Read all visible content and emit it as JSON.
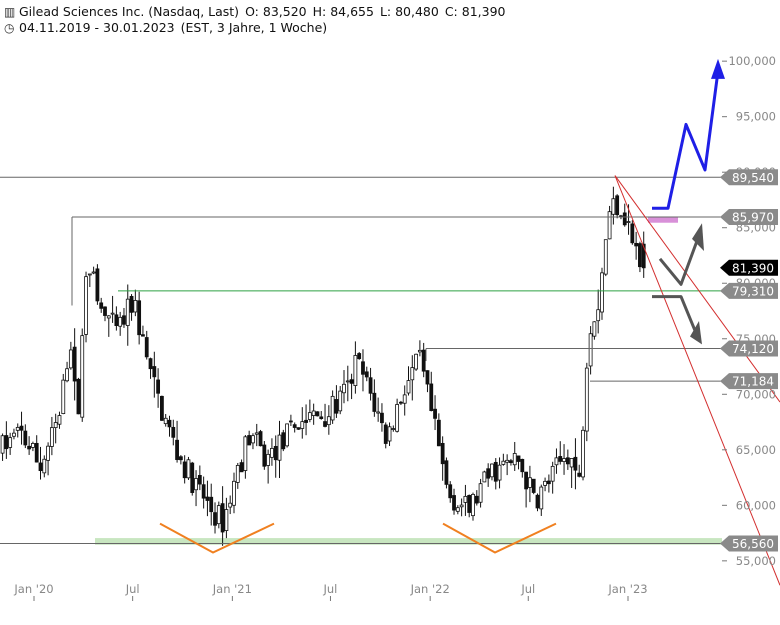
{
  "header": {
    "title": "Gilead Sciences Inc. (Nasdaq, Last)",
    "open": "O: 83,520",
    "high": "H: 84,655",
    "low": "L: 80,480",
    "close": "C: 81,390",
    "period": "04.11.2019 - 30.01.2023",
    "meta": "(EST, 3 Jahre, 1 Woche)"
  },
  "chart_data": {
    "type": "candlestick",
    "ylim": [
      53.5,
      101.5
    ],
    "y_ticks": [
      55,
      60,
      65,
      70,
      75,
      80,
      85,
      90,
      95,
      100
    ],
    "y_tick_labels": [
      "55,000",
      "60,000",
      "65,000",
      "70,000",
      "75,000",
      "80,000",
      "85,000",
      "90,000",
      "95,000",
      "100,000"
    ],
    "x_ticks": [
      {
        "label": "Jan '20",
        "date": "2020-01-01"
      },
      {
        "label": "Jul",
        "date": "2020-07-01"
      },
      {
        "label": "Jan '21",
        "date": "2021-01-01"
      },
      {
        "label": "Jul",
        "date": "2021-07-01"
      },
      {
        "label": "Jan '22",
        "date": "2022-01-01"
      },
      {
        "label": "Jul",
        "date": "2022-07-01"
      },
      {
        "label": "Jan '23",
        "date": "2023-01-01"
      }
    ],
    "x_start": "2019-11-04",
    "x_end": "2023-01-30",
    "anchors": [
      [
        "2019-11-04",
        65.0
      ],
      [
        "2019-12-15",
        66.5
      ],
      [
        "2020-01-20",
        63.5
      ],
      [
        "2020-02-25",
        68.0
      ],
      [
        "2020-03-15",
        75.5
      ],
      [
        "2020-03-28",
        67.0
      ],
      [
        "2020-04-15",
        83.0
      ],
      [
        "2020-05-05",
        78.0
      ],
      [
        "2020-06-10",
        75.5
      ],
      [
        "2020-07-10",
        78.5
      ],
      [
        "2020-07-25",
        75.0
      ],
      [
        "2020-08-20",
        70.0
      ],
      [
        "2020-09-30",
        64.5
      ],
      [
        "2020-11-05",
        61.5
      ],
      [
        "2020-12-01",
        59.5
      ],
      [
        "2020-12-22",
        58.5
      ],
      [
        "2021-01-20",
        63.5
      ],
      [
        "2021-02-10",
        66.5
      ],
      [
        "2021-03-10",
        64.0
      ],
      [
        "2021-04-15",
        66.0
      ],
      [
        "2021-05-10",
        67.5
      ],
      [
        "2021-06-10",
        68.0
      ],
      [
        "2021-07-10",
        68.5
      ],
      [
        "2021-08-10",
        70.5
      ],
      [
        "2021-08-25",
        73.0
      ],
      [
        "2021-09-20",
        70.0
      ],
      [
        "2021-10-20",
        66.0
      ],
      [
        "2021-11-20",
        70.5
      ],
      [
        "2021-12-20",
        73.0
      ],
      [
        "2022-01-20",
        66.0
      ],
      [
        "2022-02-10",
        61.0
      ],
      [
        "2022-03-20",
        59.5
      ],
      [
        "2022-05-01",
        63.0
      ],
      [
        "2022-06-20",
        64.0
      ],
      [
        "2022-07-20",
        60.5
      ],
      [
        "2022-08-20",
        62.5
      ],
      [
        "2022-09-20",
        65.0
      ],
      [
        "2022-10-10",
        62.0
      ],
      [
        "2022-10-27",
        76.0
      ],
      [
        "2022-11-15",
        78.5
      ],
      [
        "2022-12-01",
        85.5
      ],
      [
        "2022-12-15",
        87.5
      ],
      [
        "2022-12-30",
        86.5
      ],
      [
        "2023-01-10",
        85.0
      ],
      [
        "2023-01-30",
        81.4
      ]
    ],
    "last_candle": {
      "open": 83.52,
      "high": 84.655,
      "low": 80.48,
      "close": 81.39
    },
    "levels": [
      {
        "label": "89,540",
        "value": 89.54
      },
      {
        "label": "85,970",
        "value": 85.97
      },
      {
        "label": "81,390",
        "value": 81.39
      },
      {
        "label": "79,310",
        "value": 79.31
      },
      {
        "label": "74,120",
        "value": 74.12
      },
      {
        "label": "71,184",
        "value": 71.184
      },
      {
        "label": "56,560",
        "value": 56.56
      }
    ],
    "colors": {
      "candle": "#111111",
      "support_line": "#2ea043",
      "support_zone": "#c8e6c0",
      "trend_lines": "#d32f2f",
      "blue_arrow": "#1f1fe6",
      "grey_arrows": "#555555",
      "orange_v": "#f08020",
      "magenta_zone": "#d890d8",
      "level_tag": "#8a8a8a",
      "last_tag": "#000000"
    }
  }
}
